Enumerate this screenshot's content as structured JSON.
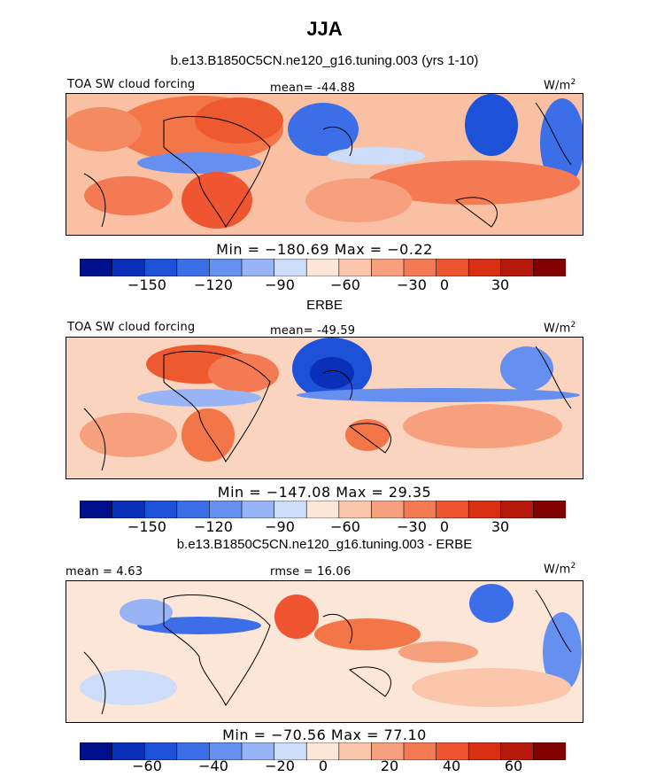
{
  "title": "JJA",
  "chart_data": [
    {
      "type": "heatmap",
      "title": "b.e13.B1850C5CN.ne120_g16.tuning.003 (yrs 1-10)",
      "left_label": "TOA SW cloud forcing",
      "center_label": "mean= -44.88",
      "units": "W/m2",
      "stats": "Min = −180.69 Max = −0.22",
      "colorbar_ticks": [
        "−150",
        "−120",
        "−90",
        "−60",
        "−30",
        "0",
        "30"
      ],
      "colorbar_range": [
        -170,
        50
      ],
      "mean": -44.88,
      "min": -180.69,
      "max": -0.22
    },
    {
      "type": "heatmap",
      "title": "ERBE",
      "left_label": "TOA SW cloud forcing",
      "center_label": "mean= -49.59",
      "units": "W/m2",
      "stats": "Min = −147.08 Max = 29.35",
      "colorbar_ticks": [
        "−150",
        "−120",
        "−90",
        "−60",
        "−30",
        "0",
        "30"
      ],
      "colorbar_range": [
        -170,
        50
      ],
      "mean": -49.59,
      "min": -147.08,
      "max": 29.35
    },
    {
      "type": "heatmap",
      "title": "b.e13.B1850C5CN.ne120_g16.tuning.003 - ERBE",
      "left_label": "mean = 4.63",
      "center_label": "rmse = 16.06",
      "units": "W/m2",
      "stats": "Min = −70.56 Max = 77.10",
      "colorbar_ticks": [
        "−60",
        "−40",
        "−20",
        "0",
        "20",
        "40",
        "60"
      ],
      "colorbar_range": [
        -80,
        80
      ],
      "mean": 4.63,
      "rmse": 16.06,
      "min": -70.56,
      "max": 77.1
    }
  ],
  "colorbar_colors": [
    "#00108c",
    "#0a2fb8",
    "#1d52d8",
    "#3c6ee8",
    "#6690f0",
    "#98b4f4",
    "#cddcf8",
    "#fbe6d8",
    "#fbc6ac",
    "#f7a07e",
    "#f47a54",
    "#ee5530",
    "#d93014",
    "#b51a0a",
    "#820000"
  ]
}
